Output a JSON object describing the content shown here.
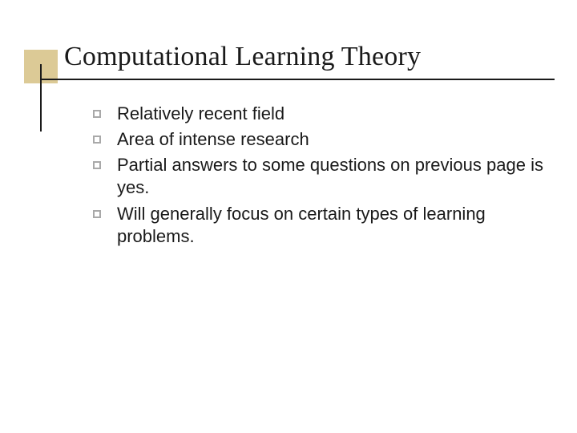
{
  "slide": {
    "title": "Computational Learning Theory",
    "bullets": [
      "Relatively recent field",
      "Area of intense research",
      "Partial answers to some questions on previous page is yes.",
      "Will generally focus on certain types of learning problems."
    ],
    "styling": {
      "background_color": "#ffffff",
      "accent_box_color": "#dcca96",
      "accent_box_size": 42,
      "title_font_family": "Times New Roman",
      "title_font_size": 34,
      "title_color": "#1a1a1a",
      "body_font_family": "Verdana",
      "body_font_size": 22,
      "body_color": "#1a1a1a",
      "underline_color": "#1a1a1a",
      "underline_thickness": 2,
      "bullet_marker_border_color": "#a9a9a9",
      "bullet_marker_size": 10,
      "bullet_marker_border_width": 2,
      "vertical_line_length": 84,
      "vertical_line_color": "#1a1a1a"
    }
  }
}
